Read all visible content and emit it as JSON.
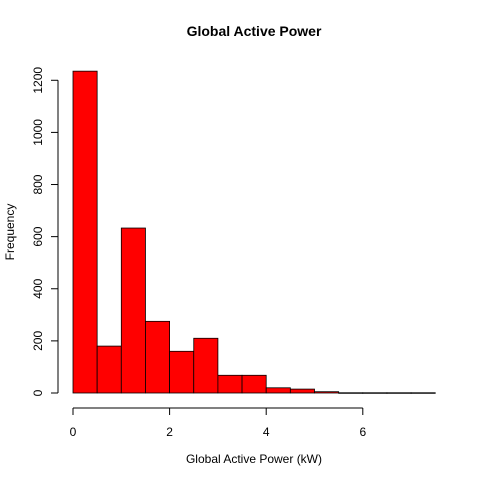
{
  "chart_data": {
    "type": "bar",
    "title": "Global Active Power",
    "xlabel": "Global Active Power (kW)",
    "ylabel": "Frequency",
    "bins": [
      {
        "x0": 0.0,
        "x1": 0.5,
        "count": 1235
      },
      {
        "x0": 0.5,
        "x1": 1.0,
        "count": 180
      },
      {
        "x0": 1.0,
        "x1": 1.5,
        "count": 633
      },
      {
        "x0": 1.5,
        "x1": 2.0,
        "count": 275
      },
      {
        "x0": 2.0,
        "x1": 2.5,
        "count": 160
      },
      {
        "x0": 2.5,
        "x1": 3.0,
        "count": 210
      },
      {
        "x0": 3.0,
        "x1": 3.5,
        "count": 68
      },
      {
        "x0": 3.5,
        "x1": 4.0,
        "count": 68
      },
      {
        "x0": 4.0,
        "x1": 4.5,
        "count": 20
      },
      {
        "x0": 4.5,
        "x1": 5.0,
        "count": 15
      },
      {
        "x0": 5.0,
        "x1": 5.5,
        "count": 5
      },
      {
        "x0": 5.5,
        "x1": 6.0,
        "count": 1
      },
      {
        "x0": 6.0,
        "x1": 6.5,
        "count": 1
      },
      {
        "x0": 6.5,
        "x1": 7.0,
        "count": 1
      },
      {
        "x0": 7.0,
        "x1": 7.5,
        "count": 1
      }
    ],
    "x_ticks": [
      0,
      2,
      4,
      6
    ],
    "y_ticks": [
      0,
      200,
      400,
      600,
      800,
      1000,
      1200
    ],
    "xlim": [
      0,
      7.5
    ],
    "ylim": [
      0,
      1235
    ],
    "bar_color": "#ff0000",
    "bar_edge_color": "#000000",
    "grid": false,
    "legend": "none"
  }
}
